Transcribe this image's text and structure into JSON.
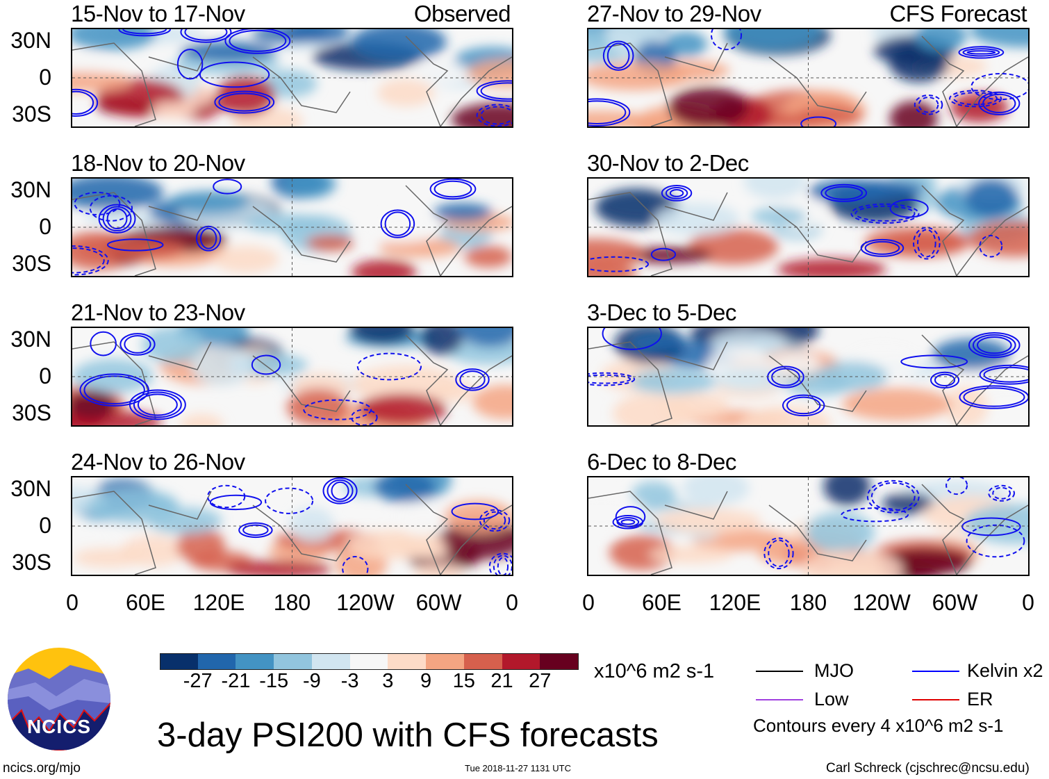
{
  "panels_left": [
    {
      "title": "15-Nov to 17-Nov",
      "tag": "Observed"
    },
    {
      "title": "18-Nov to 20-Nov",
      "tag": ""
    },
    {
      "title": "21-Nov to 23-Nov",
      "tag": ""
    },
    {
      "title": "24-Nov to 26-Nov",
      "tag": ""
    }
  ],
  "panels_right": [
    {
      "title": "27-Nov to 29-Nov",
      "tag": "CFS Forecast"
    },
    {
      "title": "30-Nov to 2-Dec",
      "tag": ""
    },
    {
      "title": "3-Dec to 5-Dec",
      "tag": ""
    },
    {
      "title": "6-Dec to 8-Dec",
      "tag": ""
    }
  ],
  "lat_labels": [
    "30N",
    "0",
    "30S"
  ],
  "lon_labels": [
    "0",
    "60E",
    "120E",
    "180",
    "120W",
    "60W",
    "0"
  ],
  "colorbar": {
    "colors": [
      "#08306b",
      "#2166ac",
      "#4393c3",
      "#92c5de",
      "#d1e5f0",
      "#f7f7f7",
      "#fddbc7",
      "#f4a582",
      "#d6604d",
      "#b2182b",
      "#67001f"
    ],
    "labels": [
      "-27",
      "-21",
      "-15",
      "-9",
      "-3",
      "3",
      "9",
      "15",
      "21",
      "27"
    ],
    "units": "x10^6 m2 s-1"
  },
  "legend": {
    "items": [
      {
        "label": "MJO",
        "color": "#000000"
      },
      {
        "label": "Kelvin x2",
        "color": "#0000ff"
      },
      {
        "label": "Low",
        "color": "#a040e0"
      },
      {
        "label": "ER",
        "color": "#e00000"
      }
    ],
    "note": "Contours every 4 x10^6 m2 s-1"
  },
  "title": "3-day PSI200 with CFS forecasts",
  "logo_text": "NCICS",
  "footer": {
    "left": "ncics.org/mjo",
    "center": "Tue 2018-11-27 1131 UTC",
    "right": "Carl Schreck (cjschrec@ncsu.edu)"
  }
}
